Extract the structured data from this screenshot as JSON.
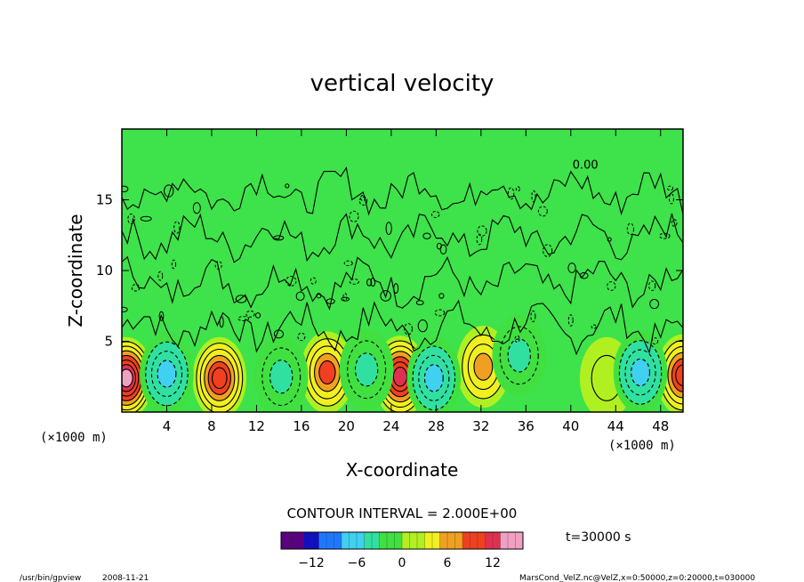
{
  "chart_data": {
    "type": "heatmap",
    "title": "vertical velocity",
    "xlabel": "X-coordinate",
    "ylabel": "Z-coordinate",
    "x_unit_left": "(×1000 m)",
    "x_unit_right": "(×1000 m)",
    "y_unit": "(×1000 m)",
    "xlim": [
      0,
      50
    ],
    "ylim": [
      0,
      20
    ],
    "x_ticks": [
      4,
      8,
      12,
      16,
      20,
      24,
      28,
      32,
      36,
      40,
      44,
      48
    ],
    "y_ticks": [
      5,
      10,
      15
    ],
    "contour_interval_text": "CONTOUR INTERVAL = 2.000E+00",
    "contour_label": "0.00",
    "time_text": "t=30000 s",
    "colorbar": {
      "range": [
        -16,
        16
      ],
      "ticks": [
        -12,
        -6,
        0,
        6,
        12
      ],
      "colors": [
        "#5a0080",
        "#1010c0",
        "#1e78ff",
        "#40d0f0",
        "#30e0a0",
        "#40e040",
        "#b0f020",
        "#f0f020",
        "#f0a020",
        "#f04020",
        "#e03050",
        "#f0a0c0"
      ]
    },
    "background_value": 0,
    "updraft_cells": [
      {
        "x": 0.4,
        "z": 2.4,
        "peak": 14
      },
      {
        "x": 8.7,
        "z": 2.4,
        "peak": 10
      },
      {
        "x": 18.3,
        "z": 2.8,
        "peak": 8
      },
      {
        "x": 24.8,
        "z": 2.5,
        "peak": 12
      },
      {
        "x": 32.2,
        "z": 3.2,
        "peak": 6
      },
      {
        "x": 43.2,
        "z": 2.4,
        "peak": 2
      },
      {
        "x": 50.0,
        "z": 2.6,
        "peak": 10
      }
    ],
    "downdraft_cells": [
      {
        "x": 4.0,
        "z": 2.7,
        "peak": -6
      },
      {
        "x": 14.2,
        "z": 2.5,
        "peak": -4
      },
      {
        "x": 21.8,
        "z": 3.0,
        "peak": -4
      },
      {
        "x": 27.8,
        "z": 2.4,
        "peak": -6
      },
      {
        "x": 35.4,
        "z": 4.0,
        "peak": -4
      },
      {
        "x": 46.2,
        "z": 2.8,
        "peak": -6
      }
    ]
  },
  "footer": {
    "program": "/usr/bin/gpview",
    "date": "2008-11-21",
    "source": "MarsCond_VelZ.nc@VelZ,x=0:50000,z=0:20000,t=030000"
  }
}
